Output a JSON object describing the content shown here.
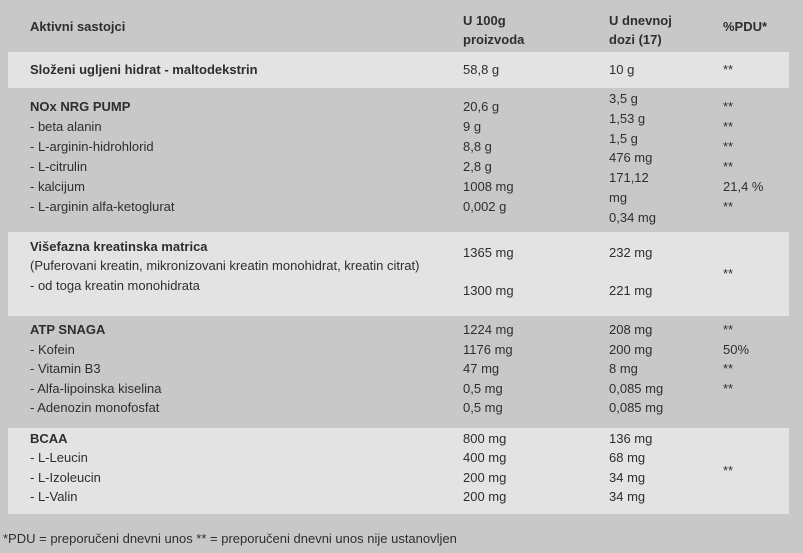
{
  "page": {
    "footer_note": "*PDU = preporučeni dnevni unos ** = preporučeni dnevni unos nije ustanovljen"
  },
  "colors": {
    "page_bg": "#c8c8c8",
    "row_highlight": "#e3e3e3",
    "text": "#2e2e2e"
  },
  "table": {
    "header": {
      "ingredients": "Aktivni sastojci",
      "per_100g_line1": "U 100g",
      "per_100g_line2": "proizvoda",
      "daily_dose_line1": "U dnevnoj",
      "daily_dose_line2": "dozi (17)",
      "pdu": "%PDU*"
    },
    "maltodextrin_row": {
      "name": "Složeni ugljeni hidrat - maltodekstrin",
      "per_100g": "58,8 g",
      "daily_dose": "10 g",
      "pdu": "**"
    },
    "nox_section": {
      "names": [
        "NOx NRG PUMP",
        "- beta alanin",
        "- L-arginin-hidrohlorid",
        "- L-citrulin",
        "- kalcijum",
        "- L-arginin alfa-ketoglurat"
      ],
      "per_100g": [
        "20,6 g",
        "9 g",
        "8,8 g",
        "2,8 g",
        "1008 mg",
        "0,002 g"
      ],
      "daily_dose_lines": [
        "3,5 g",
        "1,53 g",
        "1,5 g",
        "476 mg",
        "171,12",
        "mg",
        "0,34 mg"
      ],
      "pdu": [
        "**",
        "**",
        "**",
        "**",
        "21,4 %",
        "**"
      ]
    },
    "creatine_section": {
      "title": "Višefazna kreatinska matrica",
      "description": "(Puferovani kreatin, mikronizovani kreatin monohidrat, kreatin citrat)",
      "subrow": "- od toga kreatin monohidrata",
      "per_100g": [
        "1365 mg",
        "1300 mg"
      ],
      "daily_dose": [
        "232 mg",
        "221 mg"
      ],
      "pdu": "**"
    },
    "atp_section": {
      "rows": [
        {
          "name": "ATP SNAGA",
          "per_100g": "1224 mg",
          "daily_dose": "208 mg",
          "pdu": ""
        },
        {
          "name": "- Kofein",
          "per_100g": "1176 mg",
          "daily_dose": "200 mg",
          "pdu": "**"
        },
        {
          "name": "- Vitamin B3",
          "per_100g": "47 mg",
          "daily_dose": "8 mg",
          "pdu": "50%"
        },
        {
          "name": "- Alfa-lipoinska kiselina",
          "per_100g": "0,5 mg",
          "daily_dose": "0,085 mg",
          "pdu": "**"
        },
        {
          "name": "- Adenozin monofosfat",
          "per_100g": "0,5 mg",
          "daily_dose": "0,085 mg",
          "pdu": "**"
        }
      ]
    },
    "bcaa_section": {
      "rows": [
        {
          "name": "BCAA",
          "per_100g": "800 mg",
          "daily_dose": "136 mg"
        },
        {
          "name": "- L-Leucin",
          "per_100g": "400 mg",
          "daily_dose": "68 mg"
        },
        {
          "name": "- L-Izoleucin",
          "per_100g": "200 mg",
          "daily_dose": "34 mg"
        },
        {
          "name": "- L-Valin",
          "per_100g": "200 mg",
          "daily_dose": "34 mg"
        }
      ],
      "pdu": "**"
    }
  }
}
